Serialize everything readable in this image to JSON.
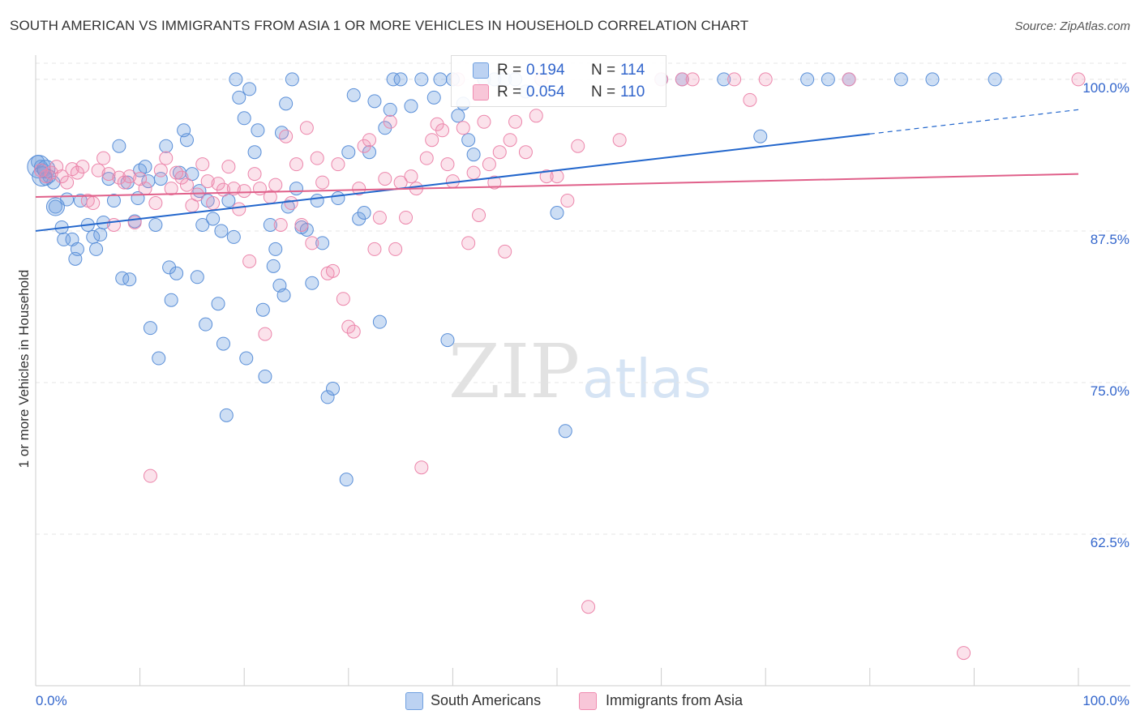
{
  "title": "SOUTH AMERICAN VS IMMIGRANTS FROM ASIA 1 OR MORE VEHICLES IN HOUSEHOLD CORRELATION CHART",
  "source": "Source: ZipAtlas.com",
  "watermark": {
    "zip": "ZIP",
    "atlas": "atlas"
  },
  "legend": {
    "rows": [
      {
        "r_label": "R =",
        "r_value": "0.194",
        "n_label": "N =",
        "n_value": "114"
      },
      {
        "r_label": "R =",
        "r_value": "0.054",
        "n_label": "N =",
        "n_value": "110"
      }
    ]
  },
  "bottom_legend": [
    "South Americans",
    "Immigrants from Asia"
  ],
  "chart_data": {
    "type": "scatter",
    "xlabel": "",
    "ylabel": "1 or more Vehicles in Household",
    "xlim": [
      0,
      100
    ],
    "ylim": [
      50.0,
      102.0
    ],
    "x_tick_labels": [
      "0.0%",
      "100.0%"
    ],
    "y_ticks": [
      62.5,
      75.0,
      87.5,
      100.0
    ],
    "y_tick_labels": [
      "62.5%",
      "75.0%",
      "87.5%",
      "100.0%"
    ],
    "grid": true,
    "colors": {
      "blue": "#6fa0e0",
      "blue_line": "#2266cc",
      "pink": "#f08cb0",
      "pink_line": "#e0608a",
      "tick_text": "#3366cc"
    },
    "series": [
      {
        "name": "South Americans",
        "color": "#6fa0e0",
        "trend": {
          "x0": 0,
          "y0": 87.5,
          "x1": 80,
          "y1": 95.5,
          "dash_to_x": 100,
          "dash_to_y": 97.5
        },
        "points": [
          [
            0.2,
            93.2
          ],
          [
            0.5,
            92.8
          ],
          [
            0.8,
            92.5
          ],
          [
            1.0,
            91.8
          ],
          [
            1.3,
            92.0
          ],
          [
            1.7,
            91.5
          ],
          [
            1.9,
            89.5
          ],
          [
            2.5,
            87.8
          ],
          [
            2.7,
            86.8
          ],
          [
            3.0,
            90.1
          ],
          [
            3.5,
            86.8
          ],
          [
            3.8,
            85.2
          ],
          [
            4.0,
            86.0
          ],
          [
            4.3,
            90.0
          ],
          [
            5.0,
            88.0
          ],
          [
            5.5,
            87.0
          ],
          [
            5.8,
            86.0
          ],
          [
            6.2,
            87.2
          ],
          [
            6.5,
            88.2
          ],
          [
            7.0,
            91.8
          ],
          [
            7.5,
            90.0
          ],
          [
            8.0,
            94.5
          ],
          [
            8.3,
            83.6
          ],
          [
            8.8,
            91.5
          ],
          [
            9.0,
            83.5
          ],
          [
            9.5,
            88.3
          ],
          [
            9.8,
            90.2
          ],
          [
            10.0,
            92.5
          ],
          [
            10.5,
            92.8
          ],
          [
            10.8,
            91.6
          ],
          [
            11.0,
            79.5
          ],
          [
            11.5,
            88.0
          ],
          [
            11.8,
            77.0
          ],
          [
            12.0,
            91.8
          ],
          [
            12.5,
            94.5
          ],
          [
            12.8,
            84.5
          ],
          [
            13.0,
            81.8
          ],
          [
            13.5,
            84.0
          ],
          [
            13.8,
            92.3
          ],
          [
            14.5,
            95.0
          ],
          [
            14.2,
            95.8
          ],
          [
            15.0,
            92.2
          ],
          [
            15.5,
            83.7
          ],
          [
            15.7,
            90.8
          ],
          [
            16.0,
            88.0
          ],
          [
            16.3,
            79.8
          ],
          [
            16.5,
            90.0
          ],
          [
            17.0,
            88.5
          ],
          [
            17.5,
            81.5
          ],
          [
            17.8,
            87.5
          ],
          [
            18.0,
            78.2
          ],
          [
            18.3,
            72.3
          ],
          [
            18.5,
            90.0
          ],
          [
            19.0,
            87.0
          ],
          [
            19.2,
            100.0
          ],
          [
            19.5,
            98.5
          ],
          [
            20.0,
            96.8
          ],
          [
            20.2,
            77.0
          ],
          [
            20.5,
            99.2
          ],
          [
            21.0,
            94.0
          ],
          [
            21.3,
            95.8
          ],
          [
            21.8,
            81.0
          ],
          [
            22.0,
            75.5
          ],
          [
            22.5,
            88.0
          ],
          [
            22.8,
            84.6
          ],
          [
            23.0,
            86.0
          ],
          [
            23.4,
            83.0
          ],
          [
            23.6,
            95.6
          ],
          [
            23.8,
            82.2
          ],
          [
            24.0,
            98.0
          ],
          [
            24.2,
            89.5
          ],
          [
            24.6,
            100.0
          ],
          [
            25.0,
            91.0
          ],
          [
            25.5,
            87.8
          ],
          [
            26.0,
            87.6
          ],
          [
            26.5,
            83.2
          ],
          [
            27.0,
            90.0
          ],
          [
            27.5,
            86.5
          ],
          [
            28.0,
            73.8
          ],
          [
            28.5,
            74.5
          ],
          [
            29.0,
            90.2
          ],
          [
            29.8,
            67.0
          ],
          [
            30.0,
            94.0
          ],
          [
            30.5,
            98.7
          ],
          [
            31.0,
            88.5
          ],
          [
            31.5,
            89.0
          ],
          [
            32.0,
            94.0
          ],
          [
            32.5,
            98.2
          ],
          [
            33.0,
            80.0
          ],
          [
            33.5,
            96.0
          ],
          [
            34.0,
            97.5
          ],
          [
            34.3,
            100.0
          ],
          [
            35.0,
            100.0
          ],
          [
            36.0,
            97.8
          ],
          [
            37.0,
            100.0
          ],
          [
            38.2,
            98.5
          ],
          [
            38.8,
            100.0
          ],
          [
            39.5,
            78.5
          ],
          [
            40.0,
            100.0
          ],
          [
            40.5,
            97.0
          ],
          [
            41.0,
            98.0
          ],
          [
            41.5,
            95.0
          ],
          [
            42.0,
            93.8
          ],
          [
            43.0,
            100.0
          ],
          [
            44.0,
            100.0
          ],
          [
            45.0,
            100.0
          ],
          [
            46.0,
            100.0
          ],
          [
            47.0,
            99.0
          ],
          [
            50.0,
            89.0
          ],
          [
            50.8,
            71.0
          ],
          [
            60.0,
            100.0
          ],
          [
            62.0,
            100.0
          ],
          [
            66.0,
            100.0
          ],
          [
            69.5,
            95.3
          ],
          [
            74.0,
            100.0
          ],
          [
            76.0,
            100.0
          ],
          [
            78.0,
            100.0
          ],
          [
            83.0,
            100.0
          ],
          [
            86.0,
            100.0
          ],
          [
            92.0,
            100.0
          ]
        ],
        "sizes_note": "large points near origin",
        "big": [
          [
            0.3,
            92.8,
            14
          ],
          [
            0.6,
            92.0,
            12
          ],
          [
            1.0,
            92.6,
            11
          ],
          [
            1.9,
            89.5,
            11
          ]
        ]
      },
      {
        "name": "Immigrants from Asia",
        "color": "#f08cb0",
        "trend": {
          "x0": 0,
          "y0": 90.3,
          "x1": 100,
          "y1": 92.2
        },
        "points": [
          [
            0.5,
            92.5
          ],
          [
            1.0,
            92.0
          ],
          [
            1.5,
            92.3
          ],
          [
            2.0,
            92.8
          ],
          [
            2.5,
            92.0
          ],
          [
            3.0,
            91.5
          ],
          [
            3.5,
            92.6
          ],
          [
            4.0,
            92.3
          ],
          [
            4.5,
            92.8
          ],
          [
            5.0,
            90.0
          ],
          [
            5.5,
            89.8
          ],
          [
            6.0,
            92.5
          ],
          [
            6.5,
            93.5
          ],
          [
            7.0,
            92.2
          ],
          [
            7.5,
            88.0
          ],
          [
            8.0,
            91.9
          ],
          [
            8.5,
            91.5
          ],
          [
            9.0,
            92.0
          ],
          [
            9.5,
            88.2
          ],
          [
            10.0,
            91.8
          ],
          [
            10.5,
            91.0
          ],
          [
            11.0,
            67.3
          ],
          [
            11.5,
            89.8
          ],
          [
            12.0,
            92.5
          ],
          [
            12.5,
            93.5
          ],
          [
            13.0,
            91.0
          ],
          [
            13.5,
            92.3
          ],
          [
            14.0,
            91.9
          ],
          [
            14.5,
            91.3
          ],
          [
            15.0,
            89.6
          ],
          [
            15.5,
            90.5
          ],
          [
            16.0,
            93.0
          ],
          [
            16.5,
            91.6
          ],
          [
            17.0,
            89.8
          ],
          [
            17.5,
            91.4
          ],
          [
            18.0,
            90.9
          ],
          [
            18.5,
            92.8
          ],
          [
            19.0,
            91.0
          ],
          [
            19.5,
            89.3
          ],
          [
            20.0,
            90.8
          ],
          [
            20.5,
            85.0
          ],
          [
            21.0,
            92.2
          ],
          [
            21.5,
            91.0
          ],
          [
            22.0,
            79.0
          ],
          [
            22.5,
            90.3
          ],
          [
            23.0,
            91.3
          ],
          [
            23.5,
            88.0
          ],
          [
            24.0,
            95.3
          ],
          [
            24.5,
            89.8
          ],
          [
            25.0,
            93.0
          ],
          [
            25.5,
            88.0
          ],
          [
            26.0,
            96.0
          ],
          [
            26.5,
            86.5
          ],
          [
            27.0,
            93.5
          ],
          [
            27.5,
            91.5
          ],
          [
            28.0,
            84.0
          ],
          [
            28.5,
            84.2
          ],
          [
            29.0,
            93.0
          ],
          [
            29.5,
            81.9
          ],
          [
            30.0,
            79.6
          ],
          [
            30.5,
            79.2
          ],
          [
            31.0,
            91.0
          ],
          [
            31.5,
            94.5
          ],
          [
            32.0,
            95.0
          ],
          [
            32.5,
            86.0
          ],
          [
            33.0,
            88.6
          ],
          [
            33.5,
            91.8
          ],
          [
            34.0,
            96.5
          ],
          [
            34.5,
            86.0
          ],
          [
            35.0,
            91.5
          ],
          [
            35.5,
            88.6
          ],
          [
            36.0,
            92.0
          ],
          [
            36.5,
            91.0
          ],
          [
            37.0,
            68.0
          ],
          [
            37.5,
            93.5
          ],
          [
            38.0,
            95.0
          ],
          [
            38.5,
            96.3
          ],
          [
            39.0,
            95.8
          ],
          [
            39.5,
            93.0
          ],
          [
            40.0,
            91.6
          ],
          [
            40.5,
            100.0
          ],
          [
            41.0,
            96.0
          ],
          [
            41.5,
            86.5
          ],
          [
            42.0,
            92.3
          ],
          [
            42.5,
            88.8
          ],
          [
            43.0,
            96.5
          ],
          [
            43.5,
            93.0
          ],
          [
            44.0,
            91.5
          ],
          [
            44.5,
            94.0
          ],
          [
            45.0,
            85.8
          ],
          [
            45.5,
            95.0
          ],
          [
            46.0,
            96.5
          ],
          [
            47.0,
            94.0
          ],
          [
            48.0,
            97.0
          ],
          [
            48.5,
            100.0
          ],
          [
            49.0,
            92.0
          ],
          [
            50.0,
            92.0
          ],
          [
            51.0,
            90.0
          ],
          [
            52.0,
            94.5
          ],
          [
            53.0,
            56.5
          ],
          [
            56.0,
            95.0
          ],
          [
            60.0,
            100.0
          ],
          [
            62.0,
            100.0
          ],
          [
            63.0,
            100.0
          ],
          [
            67.0,
            100.0
          ],
          [
            68.5,
            98.3
          ],
          [
            70.0,
            100.0
          ],
          [
            78.0,
            100.0
          ],
          [
            89.0,
            52.7
          ],
          [
            100.0,
            100.0
          ]
        ]
      }
    ]
  }
}
